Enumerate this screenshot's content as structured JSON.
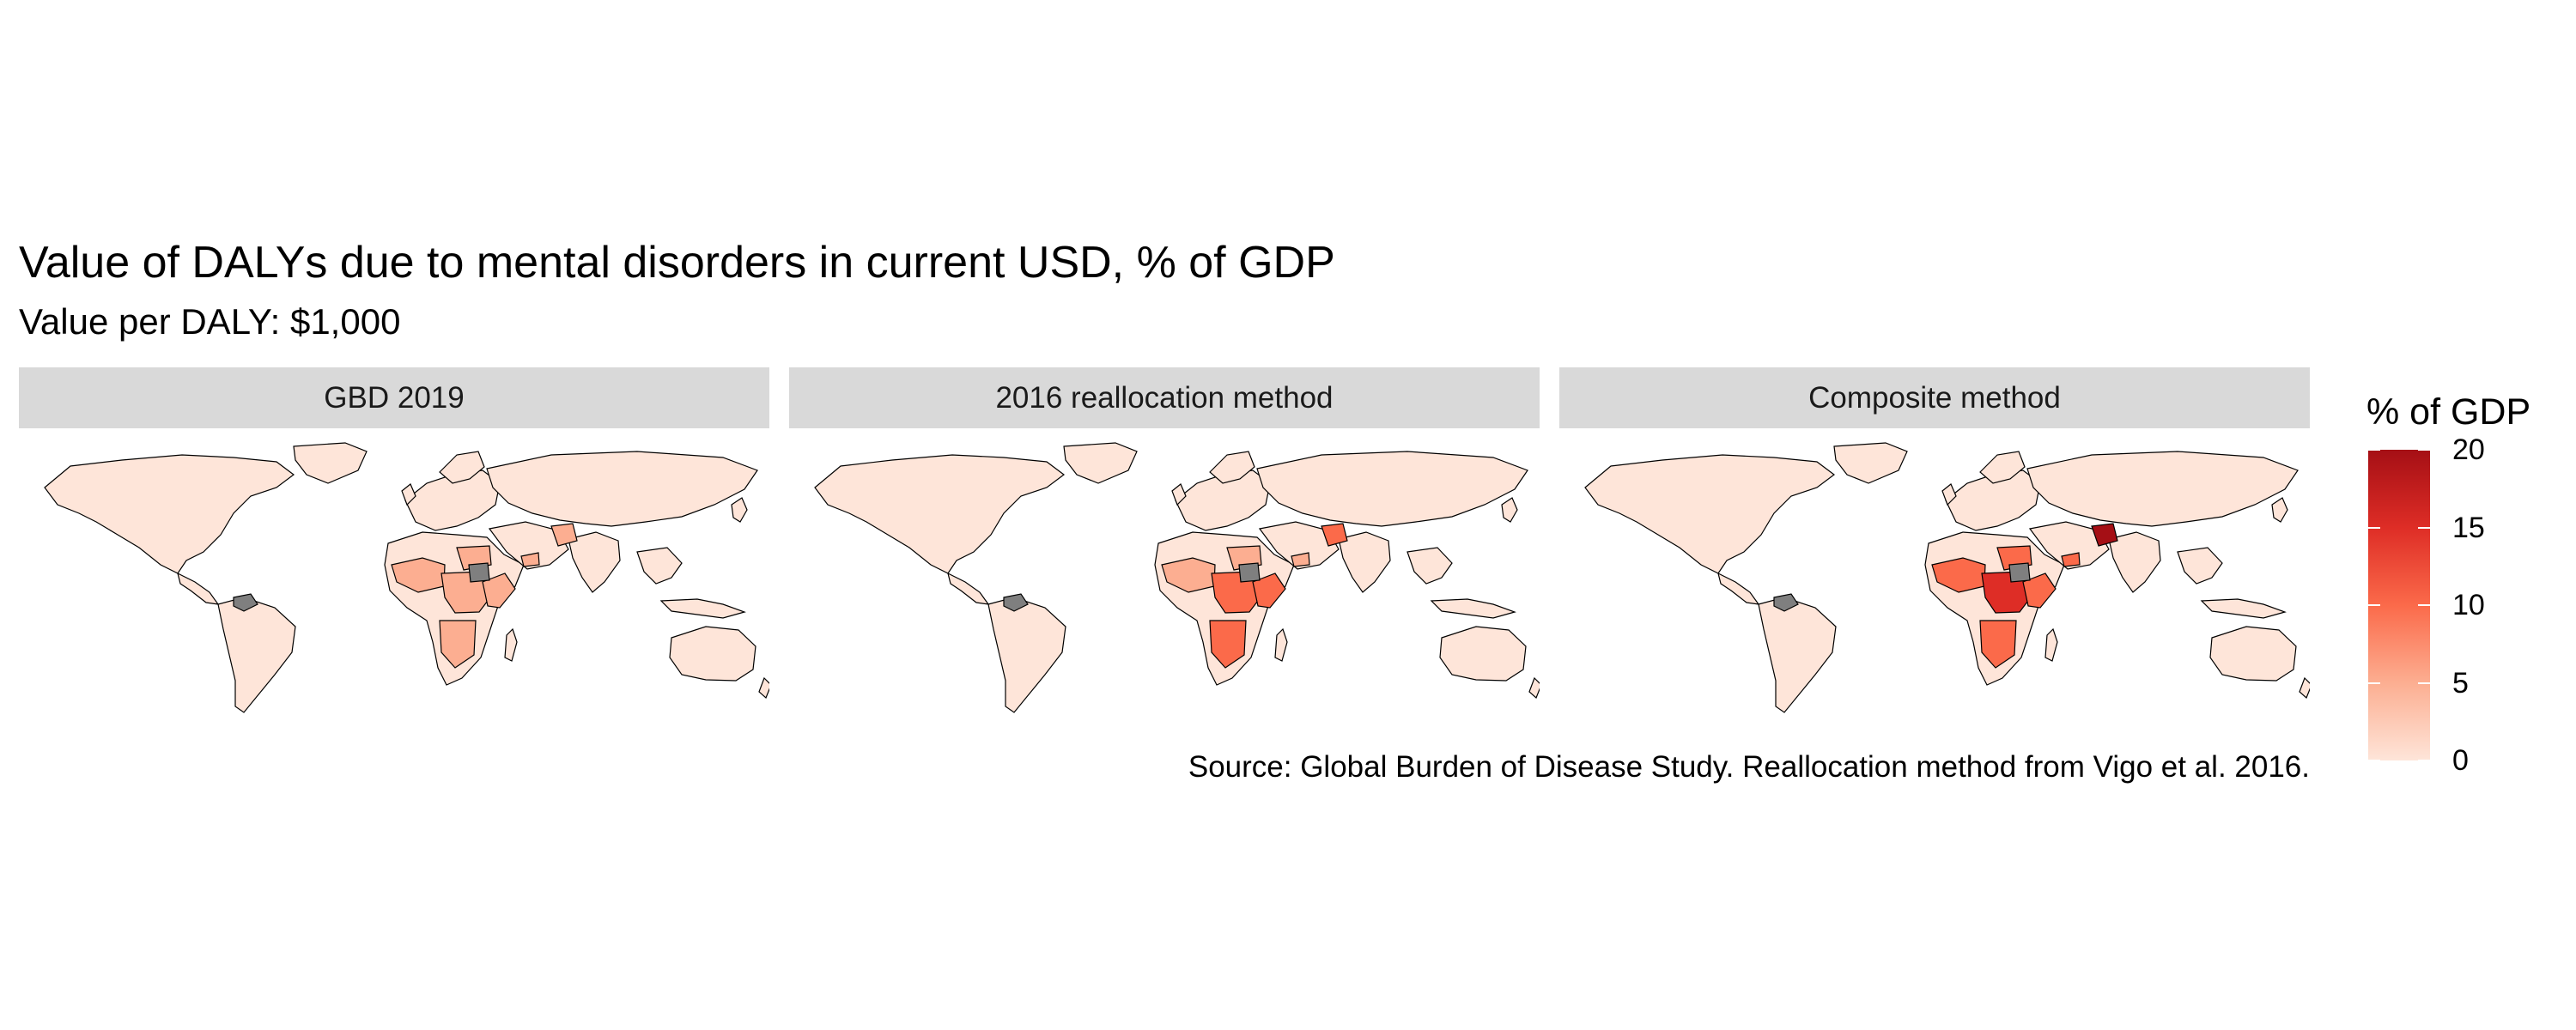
{
  "title": "Value of DALYs due to mental disorders in current USD, % of GDP",
  "subtitle": "Value per DALY: $1,000",
  "panels": [
    {
      "label": "GBD 2019"
    },
    {
      "label": "2016 reallocation method"
    },
    {
      "label": "Composite method"
    }
  ],
  "caption": "Source: Global Burden of Disease Study. Reallocation method from Vigo et al. 2016.",
  "legend": {
    "title": "% of GDP",
    "min": 0,
    "max": 20,
    "ticks": [
      "0",
      "5",
      "10",
      "15",
      "20"
    ],
    "colors": [
      "#fee5d9",
      "#fcae91",
      "#fb6a4a",
      "#de2d26",
      "#a50f15"
    ],
    "missing_color": "#7f7f7f"
  }
}
